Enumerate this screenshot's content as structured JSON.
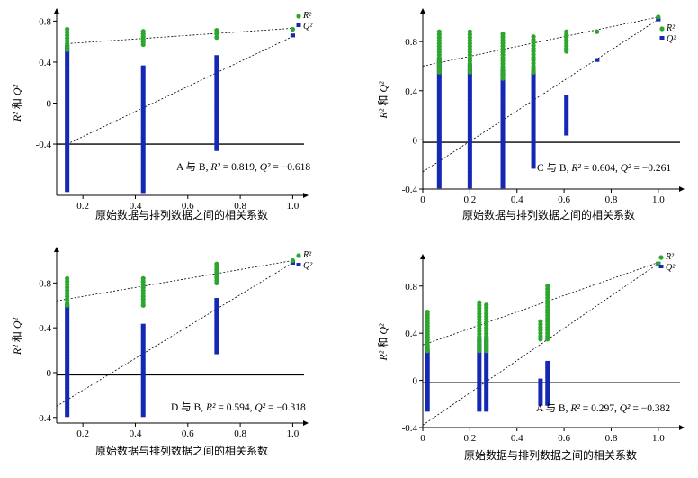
{
  "chart_data": [
    {
      "type": "scatter",
      "panel": "top-left",
      "xlabel": "原始数据与排列数据之间的相关系数",
      "ylabel": "R² 和 Q²",
      "xlim": [
        0.1,
        1.05
      ],
      "ylim": [
        -0.9,
        0.9
      ],
      "xticks": [
        0.2,
        0.4,
        0.6,
        0.8,
        1.0
      ],
      "xtick_labels": [
        "0.2",
        "0.4",
        "0.6",
        "0.8",
        "1.0"
      ],
      "yticks": [
        0.8,
        0.4,
        0,
        -0.4
      ],
      "ytick_labels": [
        "0.8",
        "0.4",
        "0",
        "-0.4"
      ],
      "legend": [
        "R²",
        "Q²"
      ],
      "legend_position": "top-right",
      "annotation": "A 与 B, R² = 0.819, Q² = −0.618",
      "baseline_y": -0.4,
      "r2_cols": [
        [
          0.14,
          0.52,
          0.72
        ],
        [
          0.43,
          0.57,
          0.7
        ],
        [
          0.71,
          0.64,
          0.71
        ],
        [
          1.0,
          0.72,
          0.72
        ]
      ],
      "q2_cols": [
        [
          0.14,
          -0.85,
          0.55
        ],
        [
          0.43,
          -0.86,
          0.35
        ],
        [
          0.71,
          -0.45,
          0.45
        ],
        [
          1.0,
          0.66,
          0.66
        ]
      ],
      "r2_line": [
        [
          0.14,
          0.58
        ],
        [
          1.0,
          0.73
        ]
      ],
      "q2_line": [
        [
          0.14,
          -0.4
        ],
        [
          1.0,
          0.65
        ]
      ]
    },
    {
      "type": "scatter",
      "panel": "top-right",
      "xlabel": "原始数据与排列数据之间的相关系数",
      "ylabel": "R² 和 Q²",
      "xlim": [
        0,
        1.1
      ],
      "ylim": [
        -0.4,
        1.05
      ],
      "xticks": [
        0,
        0.2,
        0.4,
        0.6,
        0.8,
        1.0
      ],
      "xtick_labels": [
        "0",
        "0.2",
        "0.4",
        "0.6",
        "0.8",
        "1.0"
      ],
      "yticks": [
        0.8,
        0.4,
        0,
        -0.4
      ],
      "ytick_labels": [
        "0.8",
        "0.4",
        "0",
        "-0.4"
      ],
      "legend": [
        "R²",
        "Q²"
      ],
      "legend_position": "top-right",
      "annotation": "C 与 B, R² = 0.604, Q² = −0.261",
      "baseline_y": -0.02,
      "r2_cols": [
        [
          0.07,
          0.55,
          0.88
        ],
        [
          0.2,
          0.55,
          0.88
        ],
        [
          0.34,
          0.5,
          0.86
        ],
        [
          0.47,
          0.55,
          0.84
        ],
        [
          0.61,
          0.72,
          0.88
        ],
        [
          0.74,
          0.88,
          0.88
        ],
        [
          1.0,
          1.0,
          1.0
        ]
      ],
      "q2_cols": [
        [
          0.07,
          -0.38,
          0.65
        ],
        [
          0.2,
          -0.38,
          0.6
        ],
        [
          0.34,
          -0.38,
          0.55
        ],
        [
          0.47,
          -0.22,
          0.55
        ],
        [
          0.61,
          0.05,
          0.35
        ],
        [
          0.74,
          0.65,
          0.65
        ],
        [
          1.0,
          0.98,
          0.98
        ]
      ],
      "r2_line": [
        [
          0.0,
          0.6
        ],
        [
          1.0,
          1.0
        ]
      ],
      "q2_line": [
        [
          0.0,
          -0.26
        ],
        [
          1.0,
          0.98
        ]
      ]
    },
    {
      "type": "scatter",
      "panel": "bottom-left",
      "xlabel": "原始数据与排列数据之间的相关系数",
      "ylabel": "R² 和 Q²",
      "xlim": [
        0.1,
        1.05
      ],
      "ylim": [
        -0.45,
        1.1
      ],
      "xticks": [
        0.2,
        0.4,
        0.6,
        0.8,
        1.0
      ],
      "xtick_labels": [
        "0.2",
        "0.4",
        "0.6",
        "0.8",
        "1.0"
      ],
      "yticks": [
        0.8,
        0.4,
        0,
        -0.4
      ],
      "ytick_labels": [
        "0.8",
        "0.4",
        "0",
        "-0.4"
      ],
      "legend": [
        "R²",
        "Q²"
      ],
      "legend_position": "top-right",
      "annotation": "D 与 B, R² = 0.594, Q² = −0.318",
      "baseline_y": -0.02,
      "r2_cols": [
        [
          0.14,
          0.6,
          0.84
        ],
        [
          0.43,
          0.6,
          0.84
        ],
        [
          0.71,
          0.8,
          0.97
        ],
        [
          1.0,
          1.0,
          1.0
        ]
      ],
      "q2_cols": [
        [
          0.14,
          -0.38,
          0.6
        ],
        [
          0.43,
          -0.38,
          0.42
        ],
        [
          0.71,
          0.18,
          0.65
        ],
        [
          1.0,
          0.98,
          0.98
        ]
      ],
      "r2_line": [
        [
          0.1,
          0.64
        ],
        [
          1.0,
          1.0
        ]
      ],
      "q2_line": [
        [
          0.1,
          -0.3
        ],
        [
          1.0,
          0.98
        ]
      ]
    },
    {
      "type": "scatter",
      "panel": "bottom-right",
      "xlabel": "原始数据与排列数据之间的相关系数",
      "ylabel": "R² 和 Q²",
      "xlim": [
        0,
        1.1
      ],
      "ylim": [
        -0.4,
        1.05
      ],
      "xticks": [
        0,
        0.2,
        0.4,
        0.6,
        0.8,
        1.0
      ],
      "xtick_labels": [
        "0",
        "0.2",
        "0.4",
        "0.6",
        "0.8",
        "1.0"
      ],
      "yticks": [
        0.8,
        0.4,
        0,
        -0.4
      ],
      "ytick_labels": [
        "0.8",
        "0.4",
        "0",
        "-0.4"
      ],
      "legend": [
        "R²",
        "Q²"
      ],
      "legend_position": "top-right",
      "annotation": "A 与 B, R² = 0.297, Q² = −0.382",
      "baseline_y": -0.02,
      "r2_cols": [
        [
          0.02,
          0.25,
          0.58
        ],
        [
          0.24,
          0.25,
          0.66
        ],
        [
          0.27,
          0.25,
          0.64
        ],
        [
          0.5,
          0.35,
          0.5
        ],
        [
          0.53,
          0.35,
          0.8
        ],
        [
          1.0,
          0.99,
          0.99
        ]
      ],
      "q2_cols": [
        [
          0.02,
          -0.25,
          0.25
        ],
        [
          0.24,
          -0.25,
          0.35
        ],
        [
          0.27,
          -0.25,
          0.35
        ],
        [
          0.5,
          -0.2,
          0.0
        ],
        [
          0.53,
          -0.2,
          0.15
        ],
        [
          1.0,
          0.99,
          0.99
        ]
      ],
      "r2_line": [
        [
          0.0,
          0.3
        ],
        [
          1.0,
          1.0
        ]
      ],
      "q2_line": [
        [
          0.0,
          -0.38
        ],
        [
          1.0,
          0.99
        ]
      ]
    }
  ],
  "colors": {
    "r2": "#2ca62c",
    "q2": "#1428b4",
    "line": "#000000"
  }
}
